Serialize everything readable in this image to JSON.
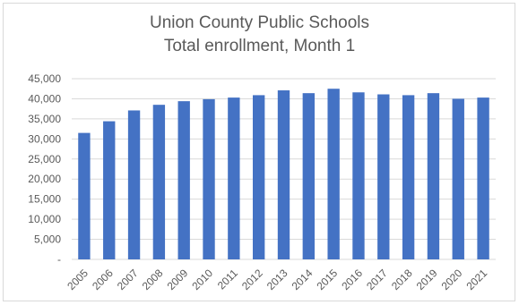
{
  "chart_data": {
    "type": "bar",
    "title": [
      "Union County Public Schools",
      "Total enrollment, Month 1"
    ],
    "xlabel": "",
    "ylabel": "",
    "categories": [
      "2005",
      "2006",
      "2007",
      "2008",
      "2009",
      "2010",
      "2011",
      "2012",
      "2013",
      "2014",
      "2015",
      "2016",
      "2017",
      "2018",
      "2019",
      "2020",
      "2021"
    ],
    "values": [
      31500,
      34400,
      37100,
      38500,
      39400,
      39900,
      40300,
      40900,
      42100,
      41400,
      42500,
      41600,
      41100,
      40900,
      41400,
      40000,
      40300
    ],
    "ylim": [
      0,
      45000
    ],
    "yticks": [
      0,
      5000,
      10000,
      15000,
      20000,
      25000,
      30000,
      35000,
      40000,
      45000
    ],
    "ytick_labels": [
      "-",
      "5,000",
      "10,000",
      "15,000",
      "20,000",
      "25,000",
      "30,000",
      "35,000",
      "40,000",
      "45,000"
    ],
    "grid": true,
    "legend": "none",
    "colors": {
      "bar": "#4472c4",
      "grid": "#d9d9d9",
      "axis": "#d9d9d9",
      "text": "#595959"
    }
  }
}
